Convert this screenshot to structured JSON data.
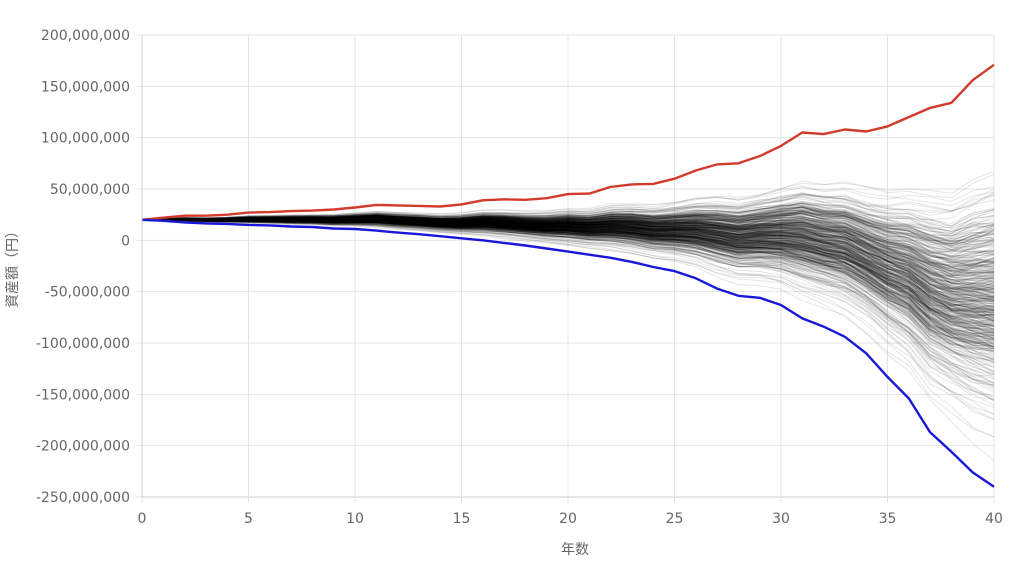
{
  "chart_data": {
    "type": "line",
    "xlabel": "年数",
    "ylabel": "資産額（円）",
    "xlim": [
      0,
      40
    ],
    "ylim": [
      -250000000,
      200000000
    ],
    "x_ticks": [
      0,
      5,
      10,
      15,
      20,
      25,
      30,
      35,
      40
    ],
    "y_ticks": [
      {
        "value": 200000000,
        "label": "200,000,000"
      },
      {
        "value": 150000000,
        "label": "150,000,000"
      },
      {
        "value": 100000000,
        "label": "100,000,000"
      },
      {
        "value": 50000000,
        "label": "50,000,000"
      },
      {
        "value": 0,
        "label": "0"
      },
      {
        "value": -50000000,
        "label": "-50,000,000"
      },
      {
        "value": -100000000,
        "label": "-100,000,000"
      },
      {
        "value": -150000000,
        "label": "-150,000,000"
      },
      {
        "value": -200000000,
        "label": "-200,000,000"
      },
      {
        "value": -250000000,
        "label": "-250,000,000"
      }
    ],
    "grid": true,
    "x": [
      0,
      1,
      2,
      3,
      4,
      5,
      6,
      7,
      8,
      9,
      10,
      11,
      12,
      13,
      14,
      15,
      16,
      17,
      18,
      19,
      20,
      21,
      22,
      23,
      24,
      25,
      26,
      27,
      28,
      29,
      30,
      31,
      32,
      33,
      34,
      35,
      36,
      37,
      38,
      39,
      40
    ],
    "series": [
      {
        "role": "maximum",
        "color": "#d23a2c",
        "values": [
          20000000,
          22000000,
          24000000,
          24000000,
          25000000,
          27000000,
          27500000,
          28500000,
          29000000,
          30000000,
          32000000,
          34500000,
          34000000,
          33500000,
          33000000,
          35000000,
          39000000,
          40000000,
          39500000,
          41000000,
          45000000,
          45500000,
          52000000,
          54500000,
          55000000,
          60000000,
          68000000,
          74000000,
          75000000,
          82000000,
          92000000,
          105000000,
          103500000,
          108000000,
          106000000,
          111000000,
          120000000,
          129000000,
          134000000,
          156000000,
          171000000
        ]
      },
      {
        "role": "minimum",
        "color": "#1818d8",
        "values": [
          20000000,
          19000000,
          17500000,
          16500000,
          16000000,
          15000000,
          14500000,
          13500000,
          13000000,
          11500000,
          11000000,
          9500000,
          7500000,
          6000000,
          4000000,
          2000000,
          0,
          -2500000,
          -5000000,
          -8000000,
          -11000000,
          -14000000,
          -17000000,
          -21000000,
          -26000000,
          -30000000,
          -37000000,
          -47000000,
          -54000000,
          -56000000,
          -63000000,
          -76000000,
          -84000000,
          -94000000,
          -110000000,
          -133000000,
          -154000000,
          -187000000,
          -206000000,
          -226000000,
          -240000000
        ]
      }
    ],
    "simulation": {
      "start_value": 20000000,
      "count": 500,
      "color": "#000000",
      "final_range": [
        -240000000,
        171000000
      ]
    }
  }
}
